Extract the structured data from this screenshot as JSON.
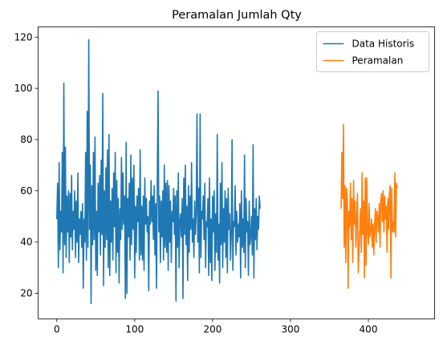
{
  "chart_data": {
    "type": "line",
    "title": "Peramalan Jumlah Qty",
    "xlabel": "",
    "ylabel": "",
    "xlim": [
      -24,
      485
    ],
    "ylim": [
      10,
      124
    ],
    "x_ticks": [
      0,
      100,
      200,
      300,
      400
    ],
    "y_ticks": [
      20,
      40,
      60,
      80,
      100,
      120
    ],
    "grid": false,
    "legend_position": "top-right",
    "series": [
      {
        "name": "Data Historis",
        "color": "#1f77b4",
        "x_start": 0,
        "values": [
          49,
          63,
          30,
          71,
          37,
          52,
          44,
          75,
          28,
          102,
          39,
          77,
          34,
          58,
          44,
          60,
          32,
          59,
          42,
          66,
          37,
          52,
          45,
          60,
          34,
          56,
          40,
          67,
          32,
          49,
          43,
          52,
          38,
          55,
          22,
          49,
          40,
          75,
          33,
          91,
          38,
          119,
          45,
          70,
          16,
          62,
          39,
          75,
          41,
          81,
          29,
          52,
          27,
          63,
          44,
          66,
          35,
          72,
          43,
          98,
          23,
          60,
          38,
          69,
          41,
          76,
          30,
          82,
          27,
          56,
          40,
          61,
          33,
          67,
          46,
          75,
          28,
          64,
          36,
          57,
          24,
          53,
          41,
          73,
          45,
          67,
          47,
          58,
          18,
          79,
          20,
          57,
          42,
          63,
          33,
          74,
          39,
          65,
          45,
          70,
          26,
          54,
          36,
          58,
          48,
          61,
          33,
          76,
          35,
          54,
          33,
          58,
          29,
          65,
          47,
          57,
          44,
          50,
          21,
          56,
          47,
          64,
          48,
          58,
          41,
          62,
          35,
          55,
          22,
          63,
          99,
          44,
          58,
          32,
          56,
          42,
          60,
          33,
          70,
          38,
          63,
          36,
          64,
          29,
          62,
          40,
          56,
          32,
          52,
          48,
          61,
          43,
          58,
          17,
          60,
          38,
          67,
          30,
          48,
          51,
          42,
          57,
          18,
          65,
          43,
          70,
          39,
          54,
          25,
          62,
          36,
          58,
          45,
          71,
          40,
          49,
          34,
          56,
          43,
          52,
          90,
          40,
          61,
          28,
          90,
          34,
          52,
          49,
          58,
          41,
          63,
          30,
          48,
          46,
          57,
          27,
          65,
          32,
          49,
          25,
          58,
          44,
          60,
          29,
          51,
          36,
          82,
          33,
          47,
          24,
          63,
          39,
          71,
          30,
          53,
          40,
          60,
          34,
          57,
          28,
          61,
          45,
          51,
          33,
          43,
          80,
          29,
          48,
          46,
          62,
          35,
          52,
          40,
          47,
          42,
          55,
          26,
          60,
          38,
          49,
          36,
          74,
          30,
          57,
          44,
          48,
          27,
          56,
          39,
          42,
          50,
          35,
          78,
          26,
          53,
          41,
          57,
          37,
          50,
          45,
          58,
          53
        ]
      },
      {
        "name": "Peramalan",
        "color": "#ff7f0e",
        "x_start": 365,
        "values": [
          53,
          75,
          57,
          86,
          38,
          62,
          32,
          61,
          56,
          22,
          52,
          46,
          63,
          41,
          57,
          32,
          64,
          47,
          56,
          38,
          50,
          59,
          28,
          37,
          45,
          53,
          36,
          67,
          43,
          56,
          26,
          65,
          31,
          65,
          44,
          39,
          55,
          42,
          45,
          49,
          38,
          47,
          35,
          46,
          53,
          40,
          52,
          50,
          44,
          55,
          38,
          56,
          59,
          48,
          60,
          44,
          58,
          49,
          54,
          36,
          57,
          45,
          59,
          62,
          26,
          61,
          44,
          48,
          44,
          67,
          42,
          63,
          61
        ]
      }
    ]
  }
}
